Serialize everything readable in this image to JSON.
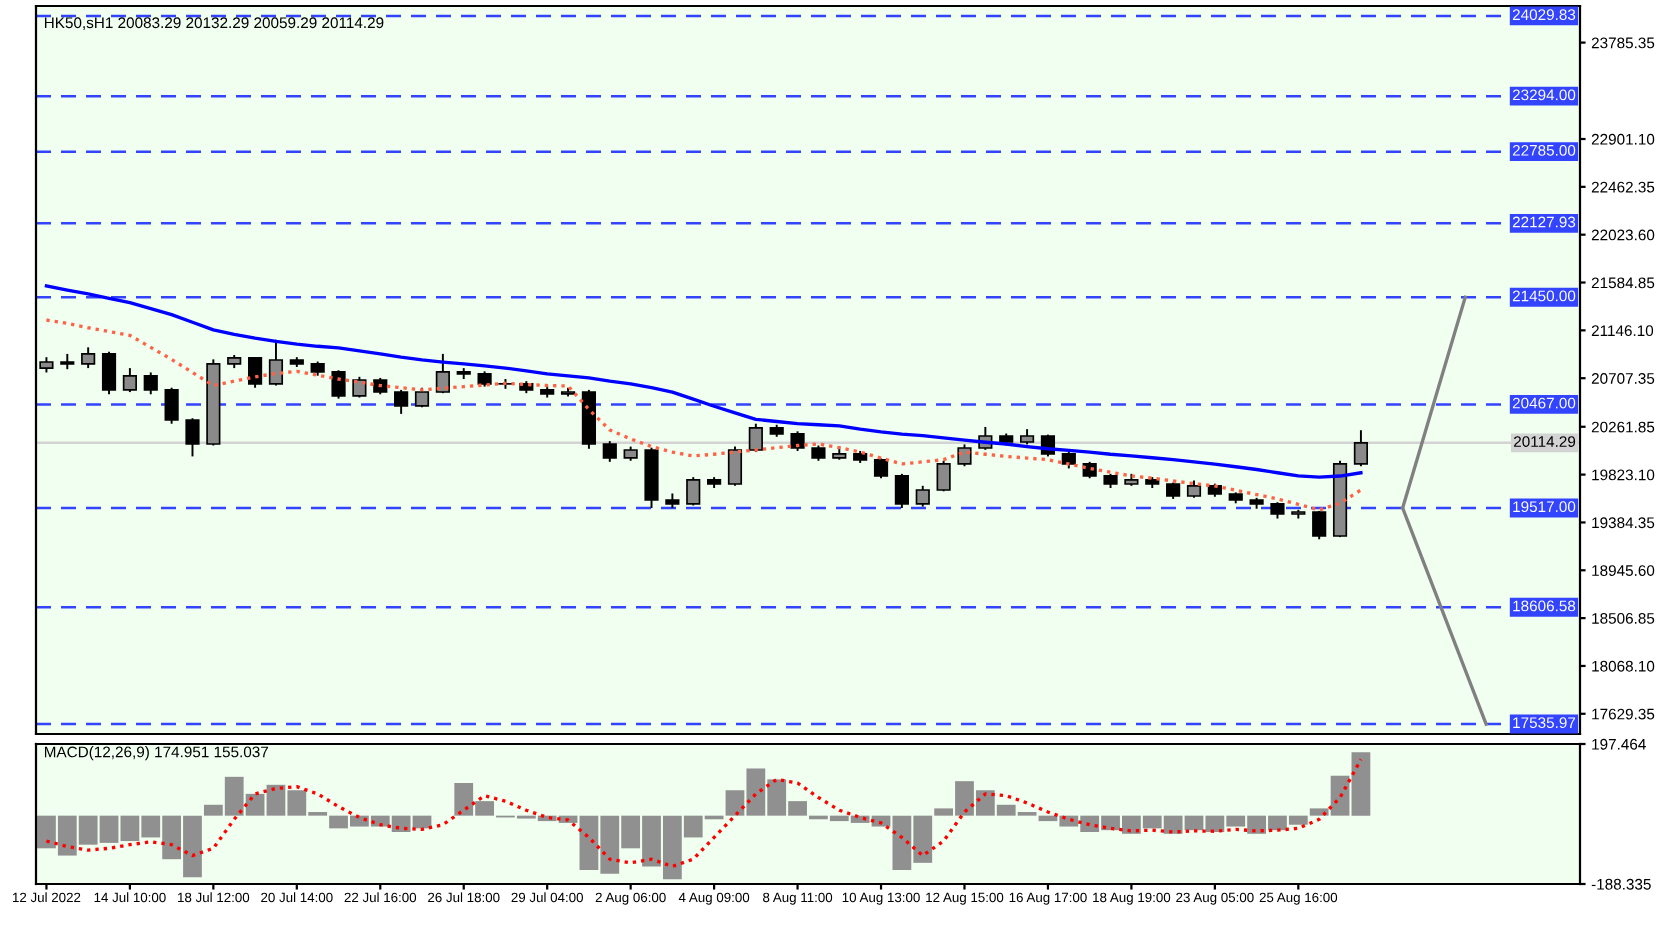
{
  "chart_data": [
    {
      "type": "candlestick",
      "title": "HK50,sH1 20083.29 20132.29 20059.29 20114.29",
      "color": "#000000",
      "categories": [
        null,
        null,
        null,
        null,
        null,
        null,
        null,
        null,
        null,
        null,
        null,
        null,
        null,
        null,
        null,
        null,
        null,
        null,
        null,
        null,
        null,
        null,
        null,
        null,
        null,
        null,
        null,
        null,
        null,
        null,
        null,
        null,
        null,
        null,
        null,
        null,
        null,
        null,
        null,
        null,
        null,
        null,
        null,
        null,
        null,
        null,
        null,
        null,
        null,
        null,
        null,
        null,
        null,
        null,
        null,
        null,
        null,
        null,
        null,
        null,
        null,
        null,
        null,
        null,
        null,
        null,
        null,
        null,
        null,
        null,
        null,
        null,
        null,
        null
      ],
      "ohlc": [
        [
          20800,
          20900,
          20760,
          20856
        ],
        [
          20856,
          20930,
          20790,
          20838
        ],
        [
          20838,
          20990,
          20800,
          20930
        ],
        [
          20930,
          20950,
          20560,
          20600
        ],
        [
          20600,
          20800,
          20580,
          20728
        ],
        [
          20728,
          20760,
          20560,
          20600
        ],
        [
          20600,
          20620,
          20290,
          20324
        ],
        [
          20324,
          20340,
          19990,
          20104
        ],
        [
          20104,
          20880,
          20090,
          20838
        ],
        [
          20838,
          20920,
          20800,
          20893
        ],
        [
          20893,
          20900,
          20620,
          20655
        ],
        [
          20655,
          21060,
          20640,
          20874
        ],
        [
          20874,
          20900,
          20810,
          20838
        ],
        [
          20838,
          20860,
          20730,
          20765
        ],
        [
          20765,
          20780,
          20520,
          20545
        ],
        [
          20545,
          20720,
          20530,
          20691
        ],
        [
          20691,
          20710,
          20560,
          20581
        ],
        [
          20581,
          20600,
          20380,
          20453
        ],
        [
          20453,
          20620,
          20440,
          20581
        ],
        [
          20581,
          20930,
          20570,
          20765
        ],
        [
          20765,
          20800,
          20700,
          20747
        ],
        [
          20747,
          20770,
          20630,
          20655
        ],
        [
          20655,
          20700,
          20610,
          20655
        ],
        [
          20655,
          20680,
          20570,
          20600
        ],
        [
          20600,
          20640,
          20530,
          20563
        ],
        [
          20563,
          20620,
          20540,
          20581
        ],
        [
          20581,
          20600,
          20060,
          20104
        ],
        [
          20104,
          20130,
          19940,
          19976
        ],
        [
          19976,
          20080,
          19950,
          20049
        ],
        [
          20049,
          20070,
          19517,
          19590
        ],
        [
          19590,
          19650,
          19517,
          19554
        ],
        [
          19554,
          19800,
          19540,
          19774
        ],
        [
          19774,
          19800,
          19700,
          19737
        ],
        [
          19737,
          20080,
          19720,
          20049
        ],
        [
          20049,
          20290,
          20030,
          20251
        ],
        [
          20251,
          20280,
          20170,
          20196
        ],
        [
          20196,
          20220,
          20040,
          20067
        ],
        [
          20067,
          20090,
          19950,
          19976
        ],
        [
          19976,
          20080,
          19960,
          20013
        ],
        [
          20013,
          20040,
          19930,
          19958
        ],
        [
          19958,
          19970,
          19790,
          19811
        ],
        [
          19811,
          19830,
          19517,
          19554
        ],
        [
          19554,
          19720,
          19530,
          19682
        ],
        [
          19682,
          19950,
          19670,
          19921
        ],
        [
          19921,
          20100,
          19900,
          20067
        ],
        [
          20067,
          20260,
          20050,
          20177
        ],
        [
          20177,
          20200,
          20090,
          20122
        ],
        [
          20122,
          20240,
          20100,
          20177
        ],
        [
          20177,
          20190,
          19990,
          20013
        ],
        [
          20013,
          20030,
          19880,
          19921
        ],
        [
          19921,
          19940,
          19790,
          19811
        ],
        [
          19811,
          19830,
          19700,
          19737
        ],
        [
          19737,
          19830,
          19720,
          19774
        ],
        [
          19774,
          19800,
          19700,
          19737
        ],
        [
          19737,
          19750,
          19600,
          19627
        ],
        [
          19627,
          19770,
          19610,
          19719
        ],
        [
          19719,
          19740,
          19620,
          19645
        ],
        [
          19645,
          19660,
          19560,
          19590
        ],
        [
          19590,
          19610,
          19510,
          19554
        ],
        [
          19554,
          19570,
          19420,
          19462
        ],
        [
          19462,
          19500,
          19420,
          19480
        ],
        [
          19480,
          19490,
          19230,
          19260
        ],
        [
          19260,
          19950,
          19250,
          19921
        ],
        [
          19921,
          20230,
          19900,
          20114.29
        ],
        null,
        null,
        null,
        null,
        null,
        null,
        null,
        null,
        null,
        null
      ],
      "series": [
        {
          "type": "line",
          "color": "#0000ff",
          "values": [
            21553,
            21515,
            21480,
            21440,
            21400,
            21345,
            21290,
            21220,
            21150,
            21110,
            21075,
            21045,
            21020,
            21000,
            20985,
            20958,
            20930,
            20900,
            20875,
            20855,
            20838,
            20820,
            20800,
            20775,
            20747,
            20728,
            20710,
            20680,
            20655,
            20620,
            20580,
            20515,
            20450,
            20390,
            20330,
            20310,
            20290,
            20280,
            20270,
            20240,
            20215,
            20195,
            20180,
            20160,
            20140,
            20120,
            20104,
            20080,
            20060,
            20045,
            20030,
            20010,
            19995,
            19978,
            19960,
            19940,
            19920,
            19895,
            19870,
            19840,
            19812,
            19800,
            19810,
            19840,
            null,
            null,
            null,
            null,
            null,
            null,
            null,
            null,
            null,
            null
          ]
        },
        {
          "type": "line",
          "color": "#ff6347",
          "line_style": "dotted",
          "values": [
            21241,
            21210,
            21170,
            21135,
            21100,
            20990,
            20880,
            20760,
            20640,
            20680,
            20720,
            20750,
            20770,
            20735,
            20700,
            20670,
            20640,
            20620,
            20600,
            20615,
            20630,
            20645,
            20660,
            20650,
            20640,
            20636,
            20420,
            20232,
            20150,
            20080,
            20030,
            19994,
            20010,
            20030,
            20049,
            20070,
            20090,
            20104,
            20070,
            20030,
            19975,
            19921,
            19940,
            19960,
            20030,
            20010,
            19990,
            19975,
            19960,
            19920,
            19880,
            19845,
            19811,
            19790,
            19765,
            19740,
            19719,
            19680,
            19640,
            19600,
            19550,
            19499,
            19560,
            19682,
            null,
            null,
            null,
            null,
            null,
            null,
            null,
            null,
            null,
            null
          ]
        },
        {
          "type": "line",
          "color": "#808080",
          "values": [
            null,
            null,
            null,
            null,
            null,
            null,
            null,
            null,
            null,
            null,
            null,
            null,
            null,
            null,
            null,
            null,
            null,
            null,
            null,
            null,
            null,
            null,
            null,
            null,
            null,
            null,
            null,
            null,
            null,
            null,
            null,
            null,
            null,
            null,
            null,
            null,
            null,
            null,
            null,
            null,
            null,
            null,
            null,
            null,
            null,
            null,
            null,
            null,
            null,
            null,
            null,
            null,
            null,
            null,
            null,
            null,
            null,
            null,
            null,
            null,
            null,
            null,
            null,
            null,
            null,
            19517,
            null,
            null,
            21450,
            null,
            null,
            null,
            null,
            null
          ]
        },
        {
          "type": "line",
          "color": "#808080",
          "values": [
            null,
            null,
            null,
            null,
            null,
            null,
            null,
            null,
            null,
            null,
            null,
            null,
            null,
            null,
            null,
            null,
            null,
            null,
            null,
            null,
            null,
            null,
            null,
            null,
            null,
            null,
            null,
            null,
            null,
            null,
            null,
            null,
            null,
            null,
            null,
            null,
            null,
            null,
            null,
            null,
            null,
            null,
            null,
            null,
            null,
            null,
            null,
            null,
            null,
            null,
            null,
            null,
            null,
            null,
            null,
            null,
            null,
            null,
            null,
            null,
            null,
            null,
            null,
            null,
            null,
            19517,
            null,
            null,
            null,
            17535.97,
            null,
            null,
            null,
            null
          ]
        }
      ],
      "ylim": [
        17444,
        24121
      ],
      "yticks": [
        23785.35,
        {
          "value": 22901.1,
          "label": "22901.10"
        },
        22462.35,
        {
          "value": 22023.6,
          "label": "22023.60"
        },
        21584.85,
        {
          "value": 21146.1,
          "label": "21146.10"
        },
        20707.35,
        20261.85,
        {
          "value": 19823.1,
          "label": "19823.10"
        },
        19384.35,
        {
          "value": 18945.6,
          "label": "18945.60"
        },
        18506.85,
        {
          "value": 18068.1,
          "label": "18068.10"
        },
        17629.35
      ],
      "ref_lines": [
        {
          "axis": "y",
          "value": 24029.83,
          "label": "24029.83",
          "color": "#3344ff",
          "line_style": "dashed"
        },
        {
          "axis": "y",
          "value": 23294,
          "label": "23294.00",
          "color": "#3344ff",
          "line_style": "dashed"
        },
        {
          "axis": "y",
          "value": 22785,
          "label": "22785.00",
          "color": "#3344ff",
          "line_style": "dashed"
        },
        {
          "axis": "y",
          "value": 22127.93,
          "label": "22127.93",
          "color": "#3344ff",
          "line_style": "dashed"
        },
        {
          "axis": "y",
          "value": 21450,
          "label": "21450.00",
          "color": "#3344ff",
          "line_style": "dashed"
        },
        {
          "axis": "y",
          "value": 20467,
          "label": "20467.00",
          "color": "#3344ff",
          "line_style": "dashed"
        },
        {
          "axis": "y",
          "value": 20114.29,
          "label": "20114.29",
          "color": "#d3d3d3",
          "line_style": "solid"
        },
        {
          "axis": "y",
          "value": 19517,
          "label": "19517.00",
          "color": "#3344ff",
          "line_style": "dashed"
        },
        {
          "axis": "y",
          "value": 18606.58,
          "label": "18606.58",
          "color": "#3344ff",
          "line_style": "dashed"
        },
        {
          "axis": "y",
          "value": 17535.97,
          "label": "17535.97",
          "color": "#3344ff",
          "line_style": "dashed"
        }
      ],
      "tick_labels": "y"
    },
    {
      "type": "bar",
      "title": "MACD(12,26,9) 174.951 155.037",
      "categories": [
        "12 Jul 2022",
        null,
        null,
        null,
        "14 Jul 10:00",
        null,
        null,
        null,
        "18 Jul 12:00",
        null,
        null,
        null,
        "20 Jul 14:00",
        null,
        null,
        null,
        "22 Jul 16:00",
        null,
        null,
        null,
        "26 Jul 18:00",
        null,
        null,
        null,
        "29 Jul 04:00",
        null,
        null,
        null,
        "2 Aug 06:00",
        null,
        null,
        null,
        "4 Aug 09:00",
        null,
        null,
        null,
        "8 Aug 11:00",
        null,
        null,
        null,
        "10 Aug 13:00",
        null,
        null,
        null,
        "12 Aug 15:00",
        null,
        null,
        null,
        "16 Aug 17:00",
        null,
        null,
        null,
        "18 Aug 19:00",
        null,
        null,
        null,
        "23 Aug 05:00",
        null,
        null,
        null,
        "25 Aug 16:00",
        null,
        null,
        null,
        null,
        null,
        null,
        null,
        null,
        null,
        null,
        null,
        null,
        null
      ],
      "series": [
        {
          "type": "bar",
          "color": "#909090",
          "values": [
            -90,
            -110,
            -80,
            -75,
            -70,
            -60,
            -120,
            -170,
            30,
            107,
            60,
            85,
            70,
            10,
            -35,
            -30,
            -30,
            -45,
            -35,
            0,
            90,
            40,
            -5,
            -8,
            -15,
            -20,
            -150,
            -160,
            -90,
            -140,
            -175,
            -60,
            -10,
            70,
            130,
            100,
            40,
            -10,
            -15,
            -20,
            -30,
            -150,
            -130,
            20,
            95,
            70,
            30,
            10,
            -15,
            -30,
            -45,
            -40,
            -50,
            -35,
            -50,
            -40,
            -45,
            -30,
            -50,
            -40,
            -25,
            20,
            110,
            175,
            null,
            null,
            null,
            null,
            null,
            null,
            null,
            null,
            null,
            null
          ]
        },
        {
          "type": "line",
          "color": "#ff0000",
          "line_style": "dotted",
          "values": [
            -70,
            -85,
            -95,
            -90,
            -80,
            -72,
            -80,
            -110,
            -90,
            -10,
            60,
            75,
            80,
            60,
            25,
            -5,
            -25,
            -35,
            -38,
            -25,
            15,
            55,
            40,
            15,
            -5,
            -12,
            -60,
            -120,
            -130,
            -120,
            -140,
            -120,
            -60,
            0,
            60,
            100,
            90,
            50,
            15,
            -5,
            -20,
            -60,
            -110,
            -70,
            10,
            60,
            55,
            35,
            10,
            -10,
            -25,
            -35,
            -42,
            -40,
            -45,
            -42,
            -43,
            -38,
            -42,
            -40,
            -35,
            -10,
            50,
            155,
            null,
            null,
            null,
            null,
            null,
            null,
            null,
            null,
            null,
            null
          ]
        }
      ],
      "ylim": [
        -188.335,
        197.464
      ],
      "yticks": [
        197.464,
        -188.335
      ]
    }
  ]
}
